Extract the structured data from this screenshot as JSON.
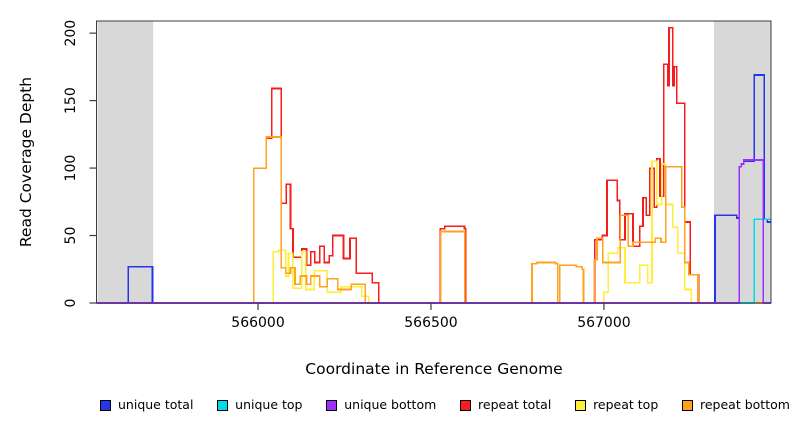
{
  "chart_data": {
    "type": "line",
    "subtype": "step",
    "title": "",
    "xlabel": "Coordinate in Reference Genome",
    "ylabel": "Read Coverage Depth",
    "xlim": [
      565533,
      567483
    ],
    "ylim": [
      0,
      209
    ],
    "xticks": [
      566000,
      566500,
      567000
    ],
    "yticks": [
      0,
      50,
      100,
      150,
      200
    ],
    "grid": false,
    "legend_position": "bottom",
    "background_bands": {
      "color": "#d8d8d8",
      "regions": [
        [
          565536,
          565697
        ],
        [
          567318,
          567483
        ]
      ]
    },
    "draw_order": [
      3,
      4,
      5,
      0,
      1,
      2
    ],
    "series": [
      {
        "name": "unique total",
        "color": "#2336ec",
        "points": [
          [
            565625,
            27
          ],
          [
            565695,
            0
          ],
          [
            567321,
            65
          ],
          [
            567384,
            63
          ],
          [
            567391,
            101
          ],
          [
            567397,
            103
          ],
          [
            567404,
            105
          ],
          [
            567434,
            169
          ],
          [
            567464,
            62
          ],
          [
            567472,
            60
          ]
        ]
      },
      {
        "name": "unique top",
        "color": "#00dde8",
        "points": [
          [
            567434,
            62
          ]
        ]
      },
      {
        "name": "unique bottom",
        "color": "#9b30ff",
        "points": [
          [
            567391,
            101
          ],
          [
            567397,
            103
          ],
          [
            567404,
            106
          ],
          [
            567461,
            0
          ]
        ]
      },
      {
        "name": "repeat total",
        "color": "#f51d1d",
        "points": [
          [
            565988,
            100
          ],
          [
            566024,
            122
          ],
          [
            566040,
            159
          ],
          [
            566067,
            74
          ],
          [
            566081,
            88
          ],
          [
            566094,
            55
          ],
          [
            566101,
            34
          ],
          [
            566126,
            40
          ],
          [
            566140,
            28
          ],
          [
            566152,
            38
          ],
          [
            566164,
            30
          ],
          [
            566178,
            42
          ],
          [
            566192,
            30
          ],
          [
            566206,
            35
          ],
          [
            566216,
            50
          ],
          [
            566247,
            33
          ],
          [
            566266,
            48
          ],
          [
            566284,
            22
          ],
          [
            566330,
            15
          ],
          [
            566349,
            0
          ],
          [
            566527,
            55
          ],
          [
            566540,
            57
          ],
          [
            566597,
            55
          ],
          [
            566601,
            0
          ],
          [
            566974,
            47
          ],
          [
            566995,
            50
          ],
          [
            567009,
            91
          ],
          [
            567038,
            76
          ],
          [
            567046,
            47
          ],
          [
            567061,
            66
          ],
          [
            567084,
            42
          ],
          [
            567104,
            57
          ],
          [
            567113,
            78
          ],
          [
            567122,
            65
          ],
          [
            567133,
            100
          ],
          [
            567145,
            71
          ],
          [
            567153,
            107
          ],
          [
            567162,
            79
          ],
          [
            567173,
            177
          ],
          [
            567185,
            161
          ],
          [
            567188,
            204
          ],
          [
            567199,
            161
          ],
          [
            567203,
            175
          ],
          [
            567211,
            148
          ],
          [
            567234,
            60
          ],
          [
            567249,
            21
          ],
          [
            567274,
            0
          ]
        ]
      },
      {
        "name": "repeat top",
        "color": "#ffee3a",
        "points": [
          [
            566044,
            38
          ],
          [
            566060,
            39
          ],
          [
            566080,
            20
          ],
          [
            566088,
            37
          ],
          [
            566100,
            11
          ],
          [
            566126,
            38
          ],
          [
            566138,
            10
          ],
          [
            566162,
            24
          ],
          [
            566200,
            8
          ],
          [
            566240,
            12
          ],
          [
            566300,
            5
          ],
          [
            566320,
            0
          ],
          [
            567000,
            8
          ],
          [
            567012,
            37
          ],
          [
            567040,
            41
          ],
          [
            567061,
            15
          ],
          [
            567104,
            28
          ],
          [
            567127,
            15
          ],
          [
            567139,
            105
          ],
          [
            567153,
            73
          ],
          [
            567167,
            103
          ],
          [
            567179,
            73
          ],
          [
            567199,
            56
          ],
          [
            567213,
            37
          ],
          [
            567234,
            10
          ],
          [
            567252,
            0
          ]
        ]
      },
      {
        "name": "repeat bottom",
        "color": "#ffa21f",
        "points": [
          [
            565988,
            100
          ],
          [
            566024,
            123
          ],
          [
            566067,
            26
          ],
          [
            566080,
            22
          ],
          [
            566094,
            26
          ],
          [
            566107,
            14
          ],
          [
            566122,
            20
          ],
          [
            566140,
            14
          ],
          [
            566152,
            20
          ],
          [
            566178,
            12
          ],
          [
            566200,
            18
          ],
          [
            566230,
            10
          ],
          [
            566270,
            14
          ],
          [
            566310,
            0
          ],
          [
            566528,
            53
          ],
          [
            566598,
            0
          ],
          [
            566792,
            29
          ],
          [
            566806,
            30
          ],
          [
            566860,
            29
          ],
          [
            566866,
            0
          ],
          [
            566872,
            28
          ],
          [
            566920,
            27
          ],
          [
            566937,
            25
          ],
          [
            566941,
            0
          ],
          [
            566972,
            32
          ],
          [
            566980,
            48
          ],
          [
            566997,
            30
          ],
          [
            567047,
            65
          ],
          [
            567070,
            42
          ],
          [
            567084,
            45
          ],
          [
            567148,
            48
          ],
          [
            567165,
            45
          ],
          [
            567179,
            101
          ],
          [
            567225,
            71
          ],
          [
            567234,
            30
          ],
          [
            567245,
            21
          ],
          [
            567272,
            0
          ]
        ]
      }
    ]
  },
  "legend": {
    "items": [
      {
        "label": "unique total"
      },
      {
        "label": "unique top"
      },
      {
        "label": "unique bottom"
      },
      {
        "label": "repeat total"
      },
      {
        "label": "repeat top"
      },
      {
        "label": "repeat bottom"
      }
    ]
  },
  "axis_color": "#3c3c3c"
}
